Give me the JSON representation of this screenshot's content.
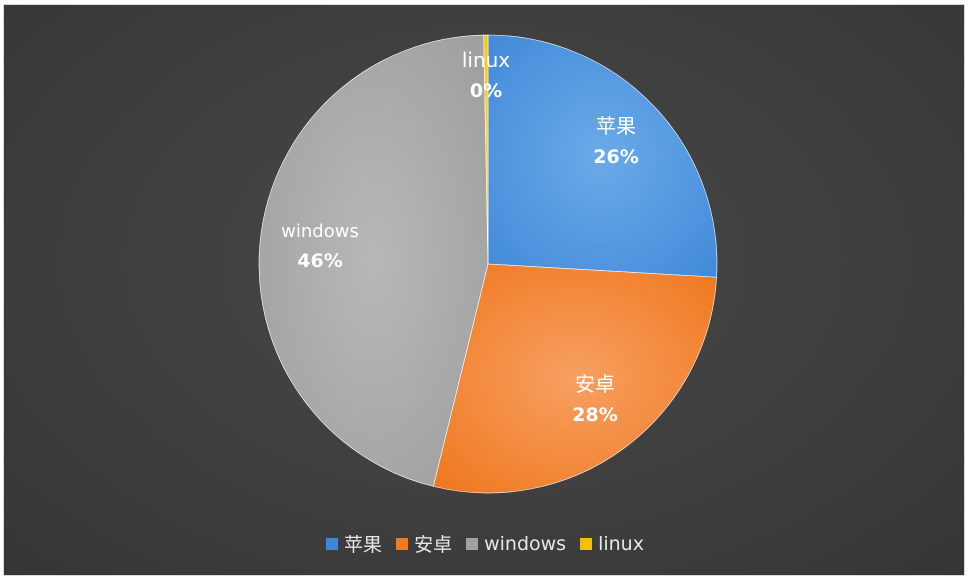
{
  "chart_data": {
    "type": "pie",
    "slices": [
      {
        "label": "苹果",
        "value": 26,
        "display": "26%",
        "color": "#3f88d8"
      },
      {
        "label": "安卓",
        "value": 28,
        "display": "28%",
        "color": "#f07a22"
      },
      {
        "label": "windows",
        "value": 46,
        "display": "46%",
        "color": "#a3a3a3"
      },
      {
        "label": "linux",
        "value": 0.3,
        "display": "0%",
        "color": "#f5c000"
      }
    ],
    "legend_position": "bottom",
    "background": "#404040"
  }
}
